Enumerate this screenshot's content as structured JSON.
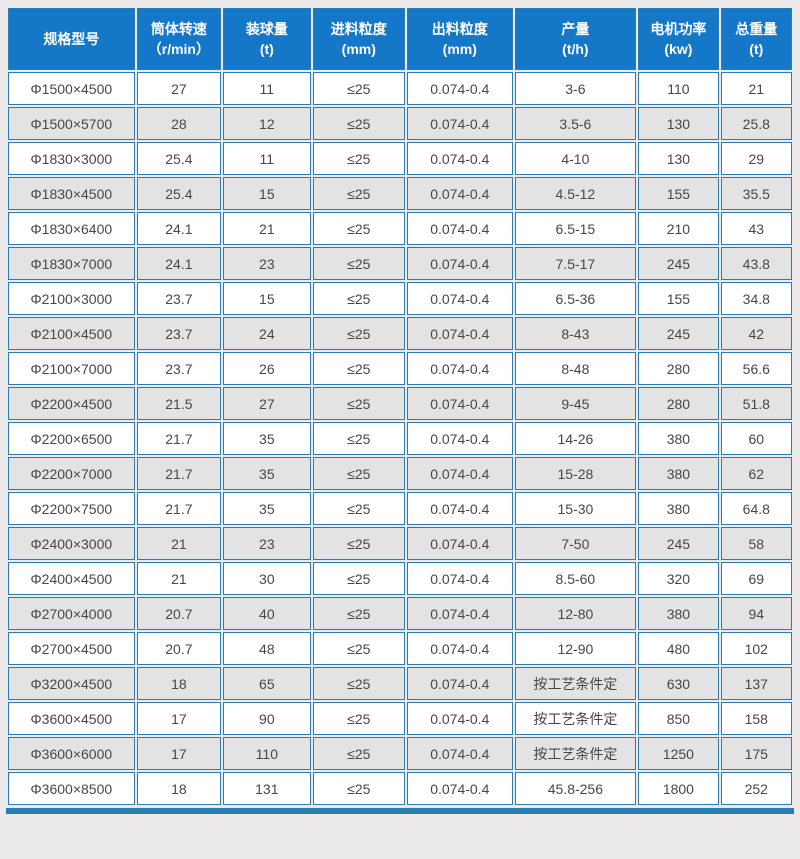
{
  "colors": {
    "page_bg": "#ece9ea",
    "header_bg": "#1577c8",
    "header_text": "#ffffff",
    "border": "#2b7cb1",
    "row_bg": "#ffffff",
    "row_alt_bg": "#e3e3e3",
    "cell_text": "#474747"
  },
  "chart_data": {
    "type": "table",
    "columns": [
      {
        "label": "规格型号",
        "unit": ""
      },
      {
        "label": "筒体转速",
        "unit": "（r/min）"
      },
      {
        "label": "装球量",
        "unit": "(t)"
      },
      {
        "label": "进料粒度",
        "unit": "(mm)"
      },
      {
        "label": "出料粒度",
        "unit": "(mm)"
      },
      {
        "label": "产量",
        "unit": "(t/h)"
      },
      {
        "label": "电机功率",
        "unit": "(kw)"
      },
      {
        "label": "总重量",
        "unit": "(t)"
      }
    ],
    "rows": [
      [
        "Φ1500×4500",
        "27",
        "11",
        "≤25",
        "0.074-0.4",
        "3-6",
        "110",
        "21"
      ],
      [
        "Φ1500×5700",
        "28",
        "12",
        "≤25",
        "0.074-0.4",
        "3.5-6",
        "130",
        "25.8"
      ],
      [
        "Φ1830×3000",
        "25.4",
        "11",
        "≤25",
        "0.074-0.4",
        "4-10",
        "130",
        "29"
      ],
      [
        "Φ1830×4500",
        "25.4",
        "15",
        "≤25",
        "0.074-0.4",
        "4.5-12",
        "155",
        "35.5"
      ],
      [
        "Φ1830×6400",
        "24.1",
        "21",
        "≤25",
        "0.074-0.4",
        "6.5-15",
        "210",
        "43"
      ],
      [
        "Φ1830×7000",
        "24.1",
        "23",
        "≤25",
        "0.074-0.4",
        "7.5-17",
        "245",
        "43.8"
      ],
      [
        "Φ2100×3000",
        "23.7",
        "15",
        "≤25",
        "0.074-0.4",
        "6.5-36",
        "155",
        "34.8"
      ],
      [
        "Φ2100×4500",
        "23.7",
        "24",
        "≤25",
        "0.074-0.4",
        "8-43",
        "245",
        "42"
      ],
      [
        "Φ2100×7000",
        "23.7",
        "26",
        "≤25",
        "0.074-0.4",
        "8-48",
        "280",
        "56.6"
      ],
      [
        "Φ2200×4500",
        "21.5",
        "27",
        "≤25",
        "0.074-0.4",
        "9-45",
        "280",
        "51.8"
      ],
      [
        "Φ2200×6500",
        "21.7",
        "35",
        "≤25",
        "0.074-0.4",
        "14-26",
        "380",
        "60"
      ],
      [
        "Φ2200×7000",
        "21.7",
        "35",
        "≤25",
        "0.074-0.4",
        "15-28",
        "380",
        "62"
      ],
      [
        "Φ2200×7500",
        "21.7",
        "35",
        "≤25",
        "0.074-0.4",
        "15-30",
        "380",
        "64.8"
      ],
      [
        "Φ2400×3000",
        "21",
        "23",
        "≤25",
        "0.074-0.4",
        "7-50",
        "245",
        "58"
      ],
      [
        "Φ2400×4500",
        "21",
        "30",
        "≤25",
        "0.074-0.4",
        "8.5-60",
        "320",
        "69"
      ],
      [
        "Φ2700×4000",
        "20.7",
        "40",
        "≤25",
        "0.074-0.4",
        "12-80",
        "380",
        "94"
      ],
      [
        "Φ2700×4500",
        "20.7",
        "48",
        "≤25",
        "0.074-0.4",
        "12-90",
        "480",
        "102"
      ],
      [
        "Φ3200×4500",
        "18",
        "65",
        "≤25",
        "0.074-0.4",
        "按工艺条件定",
        "630",
        "137"
      ],
      [
        "Φ3600×4500",
        "17",
        "90",
        "≤25",
        "0.074-0.4",
        "按工艺条件定",
        "850",
        "158"
      ],
      [
        "Φ3600×6000",
        "17",
        "110",
        "≤25",
        "0.074-0.4",
        "按工艺条件定",
        "1250",
        "175"
      ],
      [
        "Φ3600×8500",
        "18",
        "131",
        "≤25",
        "0.074-0.4",
        "45.8-256",
        "1800",
        "252"
      ]
    ],
    "title": "",
    "layout": {
      "striped": true,
      "header_rows": 1,
      "grid": true
    }
  }
}
